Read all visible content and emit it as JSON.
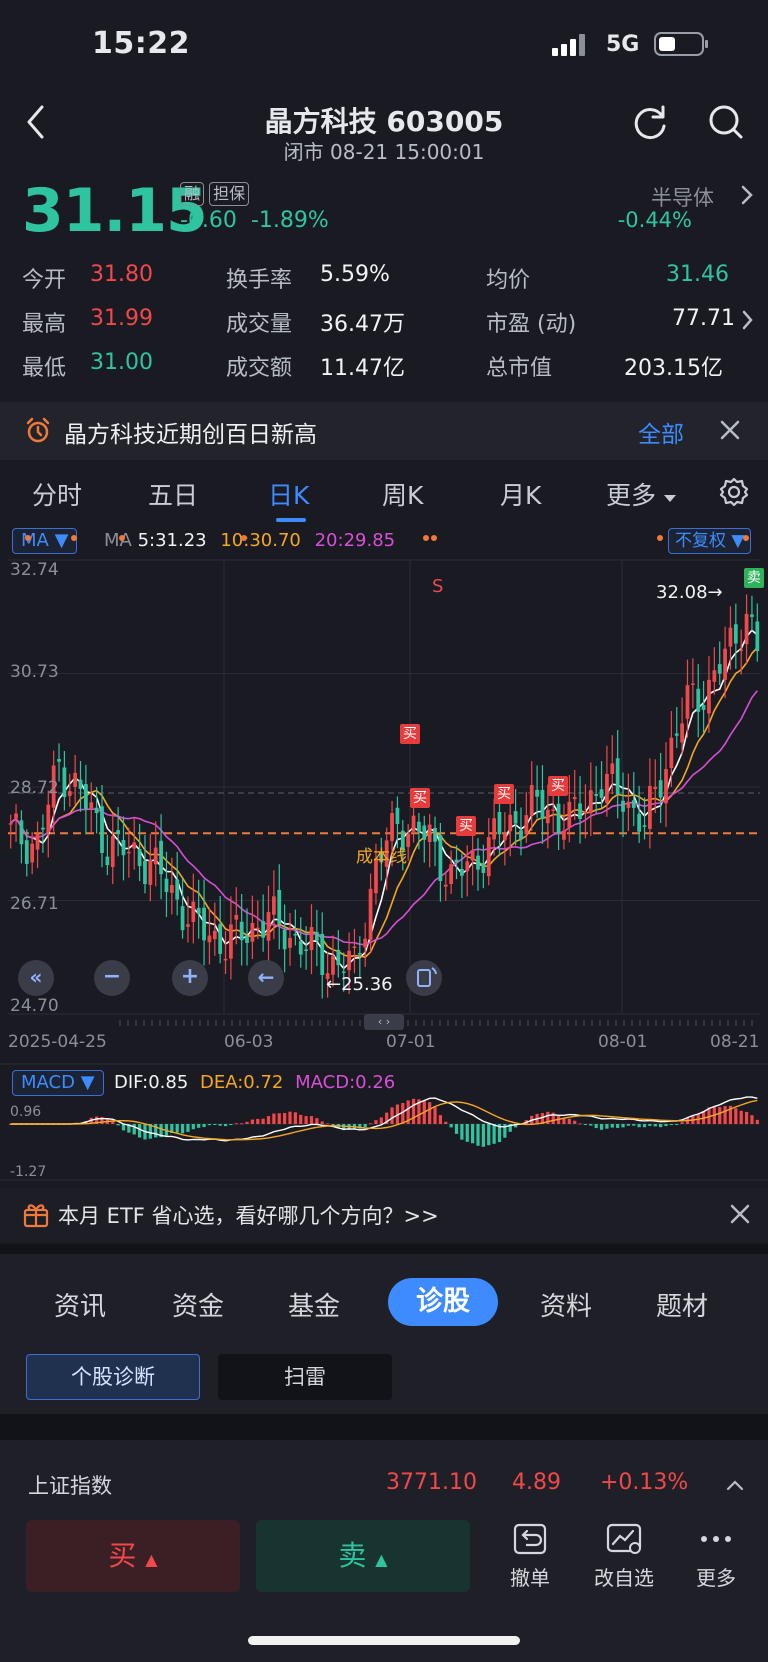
{
  "status_bar": {
    "time": "15:22",
    "network": "5G"
  },
  "header": {
    "title": "晶方科技 603005",
    "subtitle": "闭市 08-21 15:00:01"
  },
  "quote": {
    "price": "31.15",
    "tags": [
      "融",
      "担保"
    ],
    "change": "-0.60",
    "change_pct": "-1.89%",
    "sector_name": "半导体",
    "sector_change": "-0.44%"
  },
  "stats": {
    "open_label": "今开",
    "open": "31.80",
    "high_label": "最高",
    "high": "31.99",
    "low_label": "最低",
    "low": "31.00",
    "turnover_label": "换手率",
    "turnover": "5.59%",
    "volume_label": "成交量",
    "volume": "36.47万",
    "amount_label": "成交额",
    "amount": "11.47亿",
    "avg_label": "均价",
    "avg": "31.46",
    "pe_label": "市盈 (动)",
    "pe": "77.71",
    "mcap_label": "总市值",
    "mcap": "203.15亿"
  },
  "news": {
    "text": "晶方科技近期创百日新高",
    "all_label": "全部"
  },
  "chart_tabs": [
    "分时",
    "五日",
    "日K",
    "周K",
    "月K",
    "更多"
  ],
  "chart": {
    "ma_selector": "MA",
    "ma_label": "MA",
    "ma5": "5:31.23",
    "ma10": "10:30.70",
    "ma20": "20:29.85",
    "adjust": "不复权",
    "y_ticks": [
      "32.74",
      "30.73",
      "28.72",
      "26.71",
      "24.70"
    ],
    "x_ticks": [
      "2025-04-25",
      "06-03",
      "07-01",
      "08-01",
      "08-21"
    ],
    "max_label": "32.08→",
    "min_label": "←25.36",
    "cost_line_label": "成本线",
    "buy_marker": "买",
    "sell_marker": "卖",
    "s_marker": "S",
    "colors": {
      "ma5": "#ffffff",
      "ma10": "#f5a623",
      "ma20": "#d64fd6",
      "up": "#f0484b",
      "down": "#2ec4a0"
    }
  },
  "macd": {
    "selector": "MACD",
    "dif": "DIF:0.85",
    "dea": "DEA:0.72",
    "macd": "MACD:0.26",
    "top_tick": "0.96",
    "bottom_tick": "-1.27"
  },
  "promo": {
    "text": "本月 ETF 省心选，看好哪几个方向？>>"
  },
  "section_tabs": [
    "资讯",
    "资金",
    "基金",
    "诊股",
    "资料",
    "题材"
  ],
  "diag_buttons": [
    "个股诊断",
    "扫雷"
  ],
  "index": {
    "name": "上证指数",
    "value": "3771.10",
    "change": "4.89",
    "pct": "+0.13%"
  },
  "trade": {
    "buy": "买",
    "sell": "卖",
    "tools": [
      "撤单",
      "改自选",
      "更多"
    ]
  }
}
